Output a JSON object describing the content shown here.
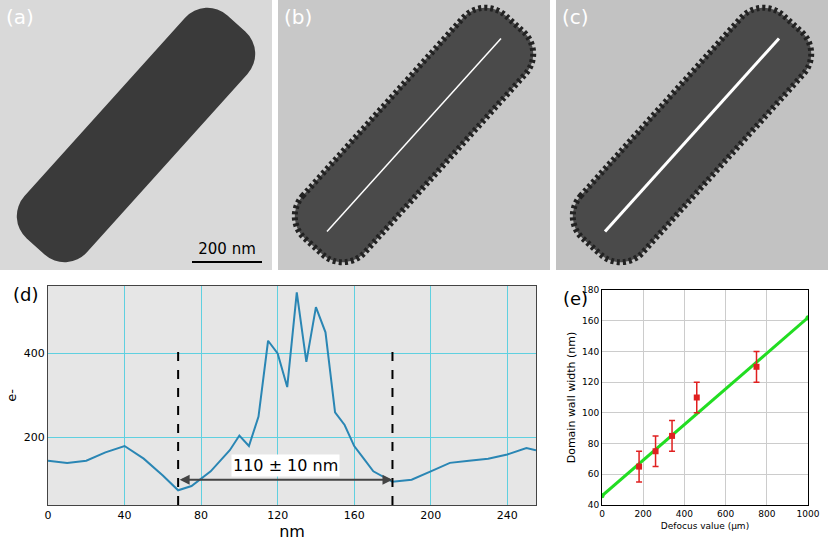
{
  "figure": {
    "panels": [
      {
        "label": "(a)"
      },
      {
        "label": "(b)"
      },
      {
        "label": "(c)"
      }
    ],
    "scale_bar": "200 nm"
  },
  "chart_data": [
    {
      "label": "(d)",
      "type": "line",
      "color": "#2a86b4",
      "x": [
        0,
        10,
        20,
        30,
        40,
        50,
        60,
        68,
        75,
        85,
        95,
        100,
        105,
        110,
        115,
        120,
        125,
        130,
        135,
        140,
        145,
        150,
        155,
        160,
        165,
        170,
        180,
        190,
        200,
        210,
        220,
        230,
        240,
        250,
        255
      ],
      "values": [
        145,
        140,
        145,
        165,
        180,
        150,
        110,
        75,
        85,
        120,
        170,
        205,
        180,
        250,
        430,
        400,
        320,
        545,
        380,
        510,
        450,
        260,
        230,
        180,
        150,
        120,
        95,
        100,
        120,
        140,
        145,
        150,
        160,
        175,
        170
      ],
      "x_label": "nm",
      "y_label": "e-",
      "xlim": [
        0,
        255
      ],
      "xticks": [
        0,
        40,
        80,
        120,
        160,
        200,
        240
      ],
      "ylim": [
        40,
        560
      ],
      "yticks": [
        200,
        400
      ],
      "grid": true,
      "annotations": [
        {
          "text": "110 ± 10 nm",
          "x_start": 68,
          "x_end": 180,
          "y": 100,
          "line_top": 410
        }
      ]
    },
    {
      "label": "(e)",
      "type": "scatter",
      "x_label": "Defocus value (μm)",
      "y_label": "Domain wall width (nm)",
      "xlim": [
        0,
        1000
      ],
      "xticks": [
        0,
        200,
        400,
        600,
        800,
        1000
      ],
      "ylim": [
        40,
        180
      ],
      "yticks": [
        40,
        60,
        80,
        100,
        120,
        140,
        160,
        180
      ],
      "grid": true,
      "series": [
        {
          "type": "line",
          "color": "#22dd22",
          "marker": "circle",
          "x": [
            0,
            1000
          ],
          "values": [
            46,
            162
          ]
        },
        {
          "type": "scatter",
          "color": "#e02020",
          "marker": "square",
          "x": [
            180,
            260,
            340,
            460,
            750
          ],
          "values": [
            65,
            75,
            85,
            110,
            130
          ],
          "error": [
            10,
            10,
            10,
            10,
            10
          ]
        }
      ]
    }
  ]
}
